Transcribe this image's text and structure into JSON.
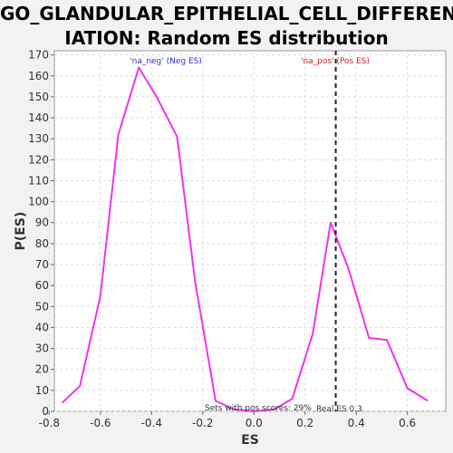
{
  "chart_data": {
    "type": "line",
    "title_line1": "GO_GLANDULAR_EPITHELIAL_CELL_DIFFERENT",
    "title_line2": "IATION: Random ES distribution",
    "xlabel": "ES",
    "ylabel": "P(ES)",
    "xlim": [
      -0.78,
      0.75
    ],
    "ylim": [
      0,
      172
    ],
    "x_ticks": [
      -0.8,
      -0.6,
      -0.4,
      -0.2,
      0.0,
      0.2,
      0.4,
      0.6
    ],
    "x_tick_labels": [
      "-0.8",
      "-0.6",
      "-0.4",
      "-0.2",
      "0.0",
      "0.2",
      "0.4",
      "0.6"
    ],
    "y_ticks": [
      0,
      10,
      20,
      30,
      40,
      50,
      60,
      70,
      80,
      90,
      100,
      110,
      120,
      130,
      140,
      150,
      160,
      170
    ],
    "grid": true,
    "series": [
      {
        "name": "Random ES",
        "color": "#ee33ee",
        "x": [
          -0.75,
          -0.68,
          -0.6,
          -0.53,
          -0.45,
          -0.38,
          -0.3,
          -0.23,
          -0.15,
          -0.08,
          0.0,
          0.08,
          0.15,
          0.23,
          0.3,
          0.37,
          0.45,
          0.52,
          0.6,
          0.68
        ],
        "y": [
          4,
          12,
          55,
          132,
          164,
          150,
          131,
          62,
          5,
          1,
          0,
          1,
          6,
          37,
          90,
          68,
          35,
          34,
          11,
          5
        ]
      }
    ],
    "real_es": 0.32,
    "real_es_color": "#222222",
    "annotations": {
      "neg_label": "'na_neg' (Neg ES)",
      "neg_color": "#3333cc",
      "pos_label": "'na_pos' (Pos ES)",
      "pos_color": "#cc2222",
      "sets_text": "Sets with pos scores: 29%",
      "real_es_text": "Real ES 0.3"
    }
  }
}
